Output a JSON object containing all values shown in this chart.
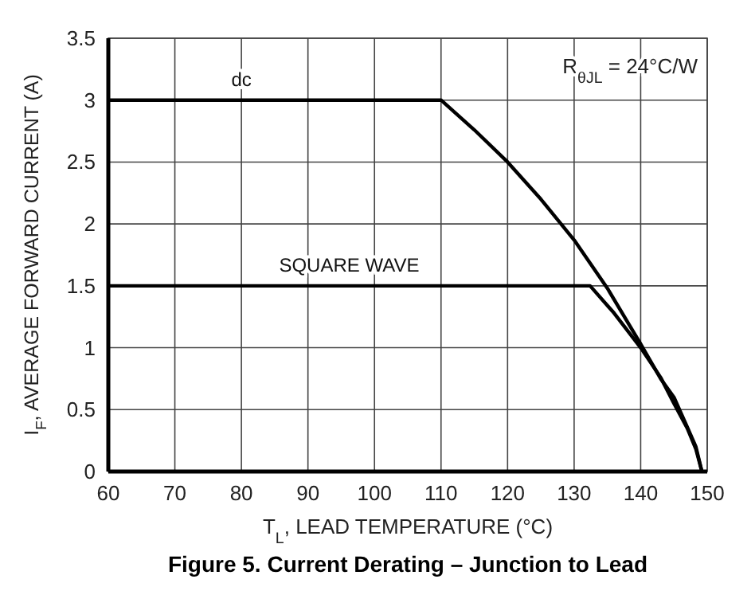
{
  "chart_data": {
    "type": "line",
    "title": "Figure 5. Current Derating – Junction to Lead",
    "xlabel": "T$_{L}$, LEAD TEMPERATURE (°C)",
    "ylabel": "I$_{F}$, AVERAGE FORWARD CURRENT (A)",
    "annotations": [
      "R$_{θJL}$ = 24°C/W"
    ],
    "xlim": [
      60,
      150
    ],
    "xticks": [
      60,
      70,
      80,
      90,
      100,
      110,
      120,
      130,
      140,
      150
    ],
    "ylim": [
      0,
      3.5
    ],
    "yticks": [
      0,
      0.5,
      1,
      1.5,
      2,
      2.5,
      3,
      3.5
    ],
    "grid": true,
    "marker": "none",
    "line_style": "solid",
    "series": [
      {
        "name": "dc",
        "color": "#000000",
        "x": [
          60,
          110,
          115,
          120,
          125,
          130,
          135,
          140,
          143,
          145,
          147,
          148.3,
          149.2
        ],
        "values": [
          3,
          3,
          2.76,
          2.5,
          2.2,
          1.87,
          1.48,
          1.03,
          0.75,
          0.6,
          0.36,
          0.2,
          0
        ]
      },
      {
        "name": "SQUARE WAVE",
        "color": "#000000",
        "x": [
          60,
          132.4,
          136,
          140,
          143,
          145,
          147,
          148.3,
          149.2
        ],
        "values": [
          1.5,
          1.5,
          1.28,
          1.0,
          0.76,
          0.55,
          0.35,
          0.18,
          0
        ]
      }
    ]
  }
}
